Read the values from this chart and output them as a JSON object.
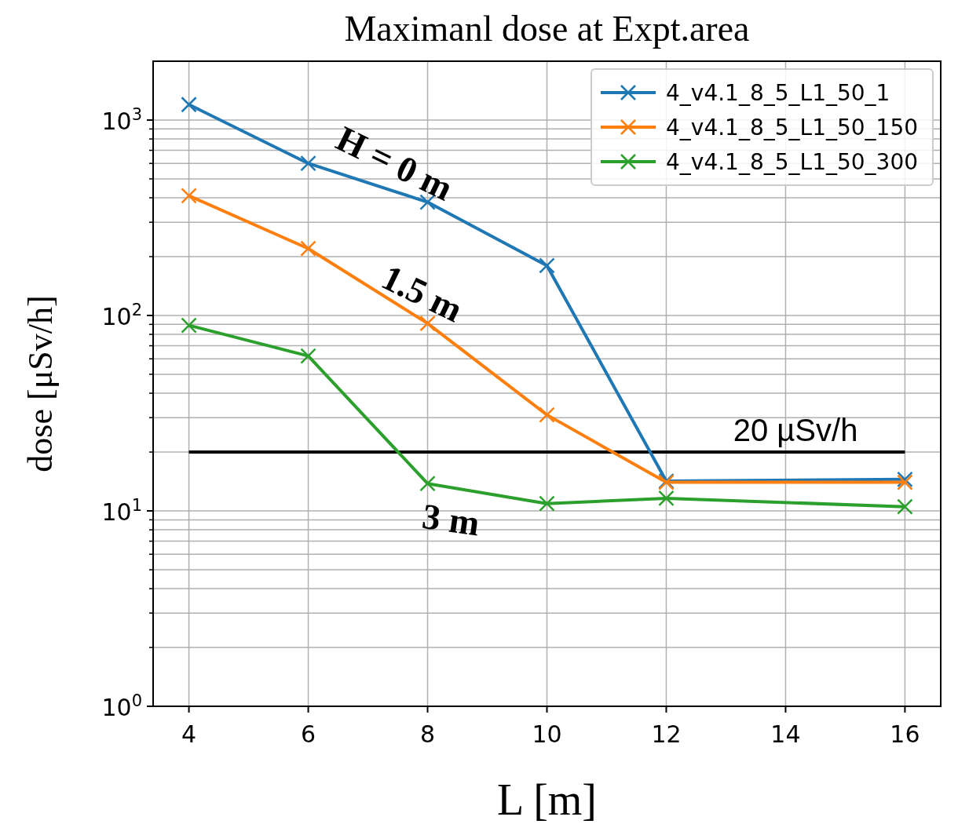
{
  "chart_data": {
    "type": "line",
    "title": "Maximanl dose at Expt.area",
    "xlabel": "L [m]",
    "ylabel": "dose [μSv/h]",
    "x": [
      4,
      6,
      8,
      10,
      12,
      16
    ],
    "series": [
      {
        "name": "4_v4.1_8_5_L1_50_1",
        "color": "#1f77b4",
        "values": [
          1200,
          600,
          380,
          180,
          14.2,
          14.5
        ]
      },
      {
        "name": "4_v4.1_8_5_L1_50_150",
        "color": "#ff7f0e",
        "values": [
          410,
          220,
          91,
          31,
          14,
          14
        ]
      },
      {
        "name": "4_v4.1_8_5_L1_50_300",
        "color": "#2ca02c",
        "values": [
          89,
          62,
          13.8,
          10.9,
          11.6,
          10.5
        ]
      }
    ],
    "log": "y",
    "xlim": [
      3.4,
      16.6
    ],
    "xticks": [
      4,
      6,
      8,
      10,
      12,
      14,
      16
    ],
    "ylim": [
      1,
      2000
    ],
    "yticks": [
      {
        "value": 1,
        "label": "10$^{0}$"
      },
      {
        "value": 10,
        "label": "10$^{1}$"
      },
      {
        "value": 100,
        "label": "10$^{2}$"
      },
      {
        "value": 1000,
        "label": "10$^{3}$"
      }
    ],
    "grid": true,
    "legend": "top right",
    "marker": "cross",
    "line_style": "solid",
    "ref_lines": [
      {
        "axis": "y",
        "value": 20,
        "label": "20 µSv/h",
        "color": "#000000"
      }
    ],
    "annotations": [
      "H = 0 m",
      "1.5 m",
      "3 m"
    ]
  }
}
